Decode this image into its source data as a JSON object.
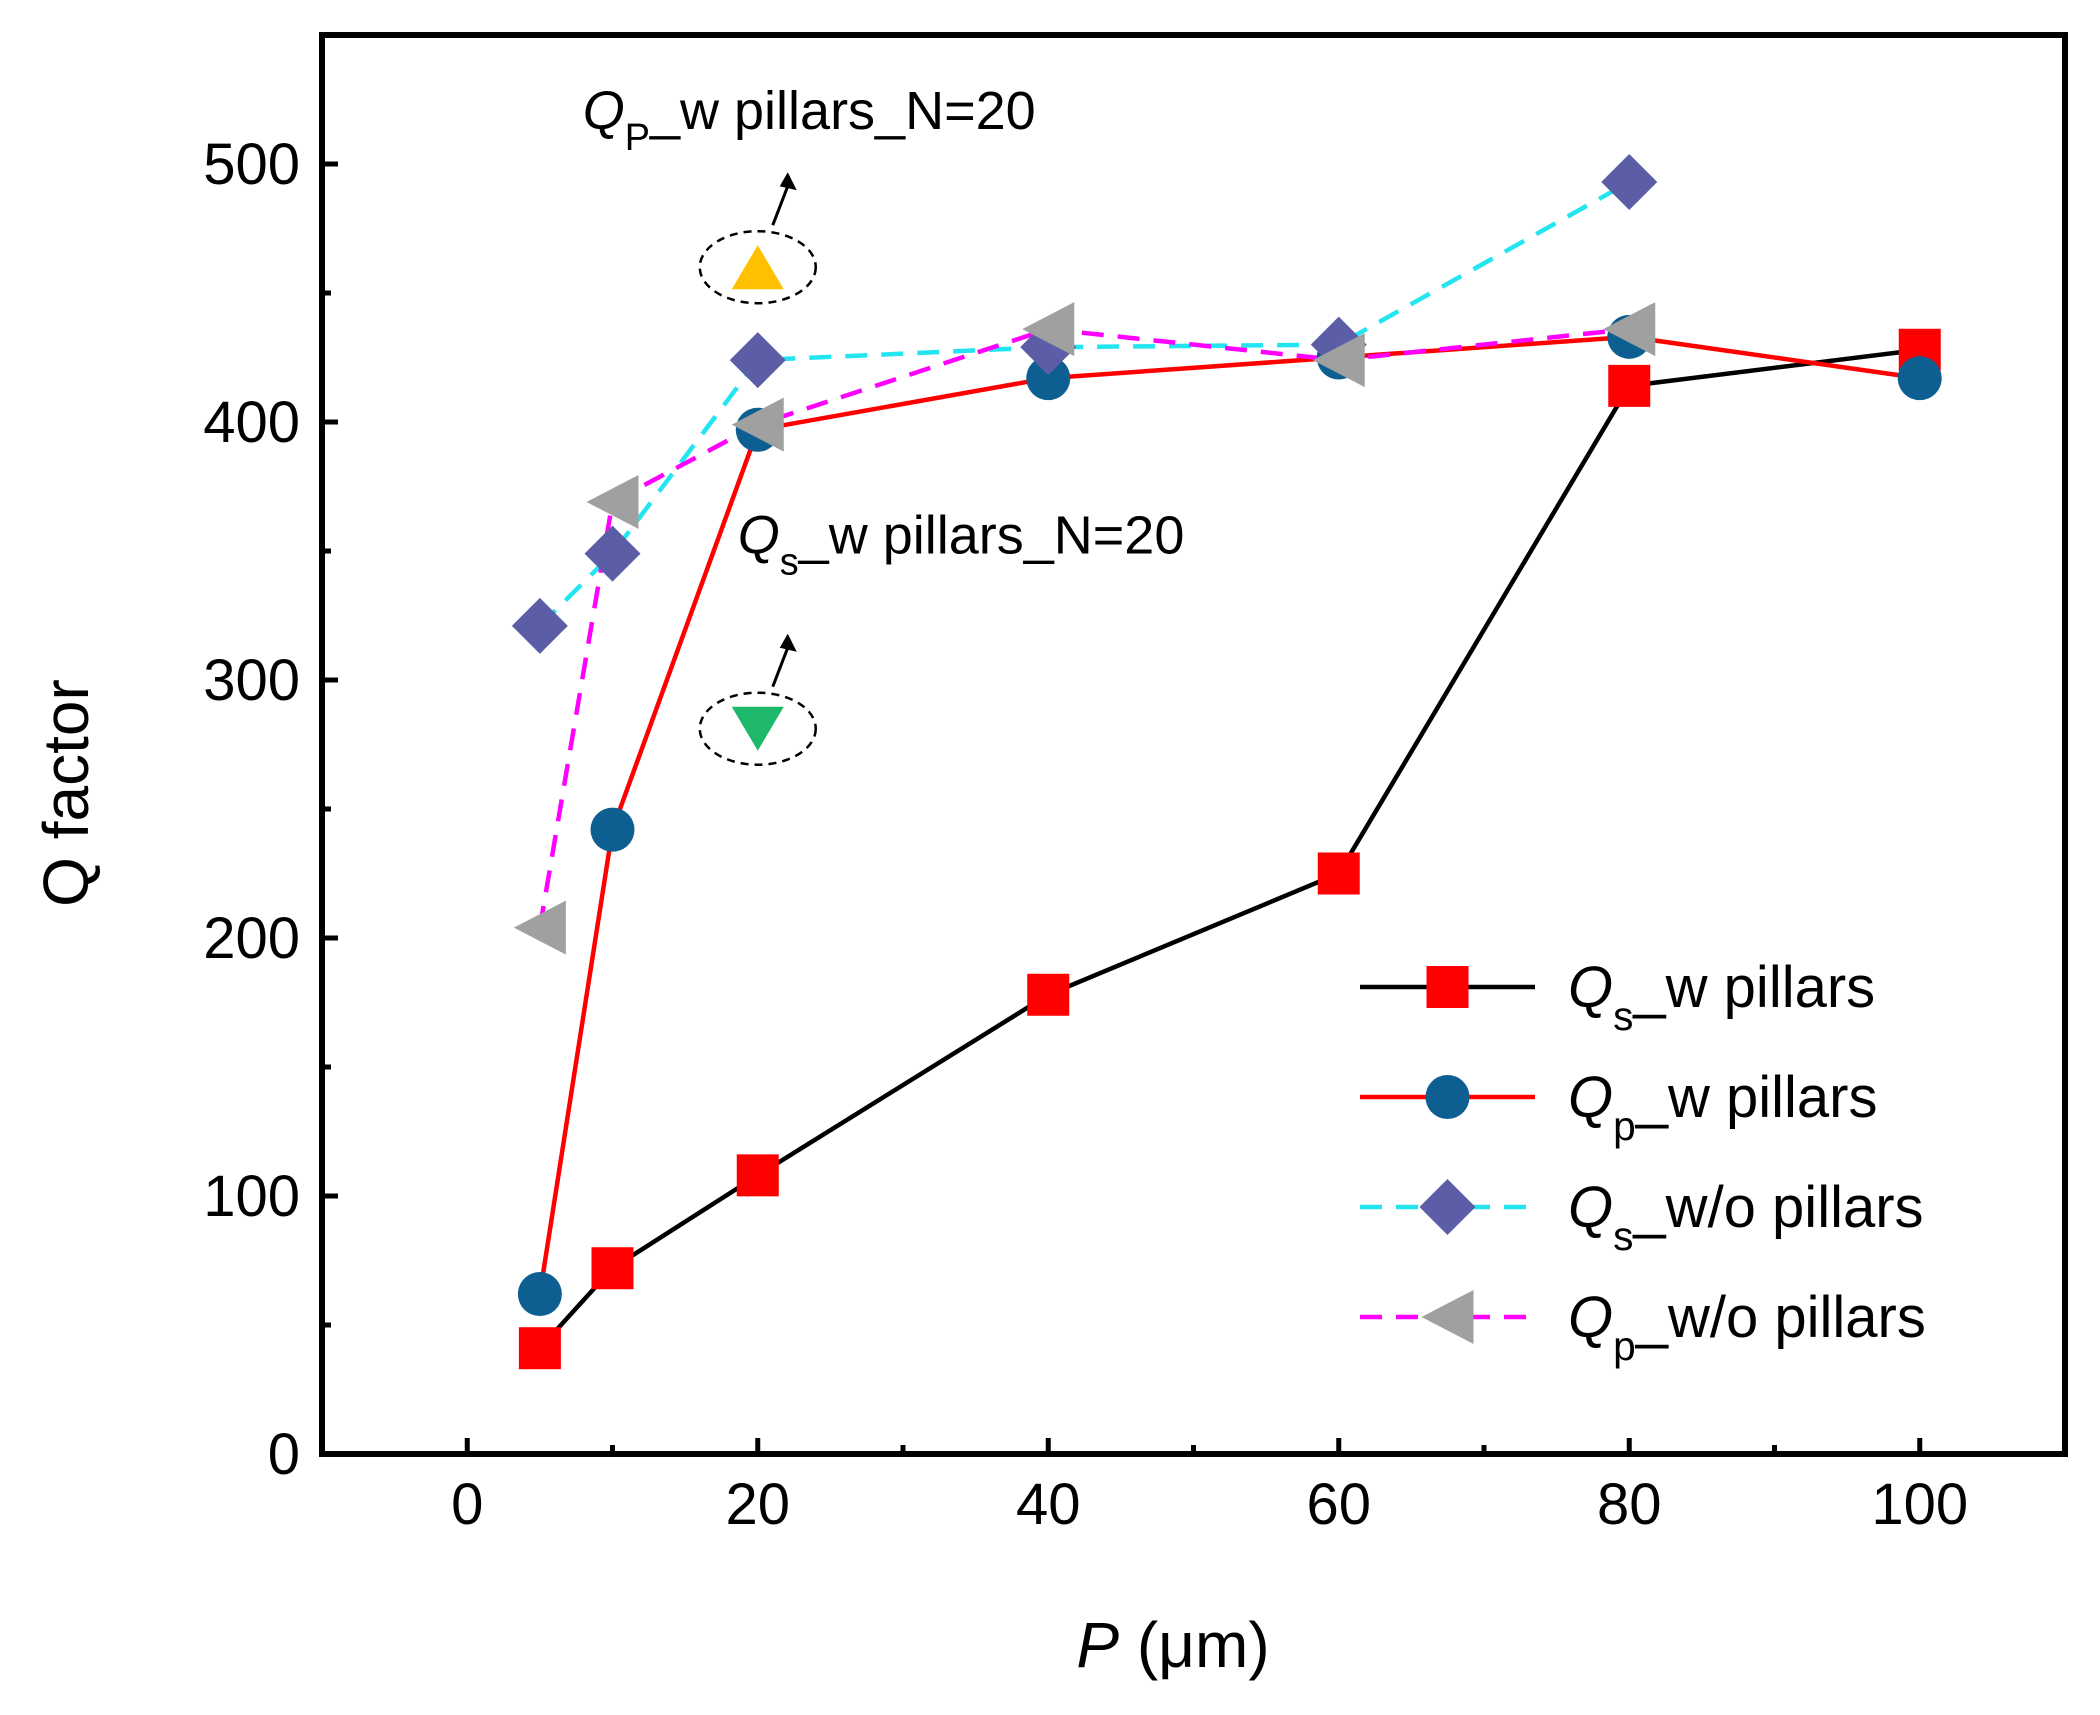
{
  "chart_data": {
    "type": "line",
    "title": "",
    "xlabel": {
      "italic": "P",
      "rest": " (μm)"
    },
    "ylabel": "Q factor",
    "xlim": [
      -10,
      110
    ],
    "ylim": [
      0,
      550
    ],
    "xticks": [
      0,
      20,
      40,
      60,
      80,
      100
    ],
    "xticks_minor": [
      10,
      30,
      50,
      70,
      90
    ],
    "yticks": [
      0,
      100,
      200,
      300,
      400,
      500
    ],
    "yticks_minor": [
      50,
      150,
      250,
      350,
      450
    ],
    "grid": false,
    "legend_position": "bottom-right",
    "series": [
      {
        "name": "Qs_w pillars",
        "label_main": "Q",
        "label_sub": "s",
        "label_rest": "_w pillars",
        "marker": "square",
        "marker_color": "#ff0000",
        "line_color": "#000000",
        "line_style": "solid",
        "x": [
          5,
          10,
          20,
          40,
          60,
          80,
          100
        ],
        "y": [
          41,
          72,
          108,
          178,
          225,
          414,
          428
        ]
      },
      {
        "name": "Qp_w pillars",
        "label_main": "Q",
        "label_sub": "p",
        "label_rest": "_w pillars",
        "marker": "circle",
        "marker_color": "#0e5f91",
        "line_color": "#ff0000",
        "line_style": "solid",
        "x": [
          5,
          10,
          20,
          40,
          60,
          80,
          100
        ],
        "y": [
          62,
          242,
          397,
          417,
          425,
          433,
          417
        ]
      },
      {
        "name": "Qs_w/o pillars",
        "label_main": "Q",
        "label_sub": "s",
        "label_rest": "_w/o pillars",
        "marker": "diamond",
        "marker_color": "#5b5ea6",
        "line_color": "#22e5ef",
        "line_style": "dashed",
        "x": [
          5,
          10,
          20,
          40,
          60,
          80
        ],
        "y": [
          321,
          349,
          424,
          429,
          430,
          493
        ]
      },
      {
        "name": "Qp_w/o pillars",
        "label_main": "Q",
        "label_sub": "p",
        "label_rest": "_w/o pillars",
        "marker": "triangle-left",
        "marker_color": "#a0a0a0",
        "line_color": "#ff00ff",
        "line_style": "dashed",
        "x": [
          5,
          10,
          20,
          40,
          60,
          80
        ],
        "y": [
          204,
          369,
          399,
          436,
          424,
          436
        ]
      }
    ],
    "annotations": [
      {
        "label_main": "Q",
        "label_sub": "P",
        "label_rest": "_w pillars_N=20",
        "marker": "triangle-up",
        "marker_color": "#ffc000",
        "x": 20,
        "y": 460
      },
      {
        "label_main": "Q",
        "label_sub": "s",
        "label_rest": "_w pillars_N=20",
        "marker": "triangle-down",
        "marker_color": "#1db86a",
        "x": 20,
        "y": 285
      }
    ]
  }
}
